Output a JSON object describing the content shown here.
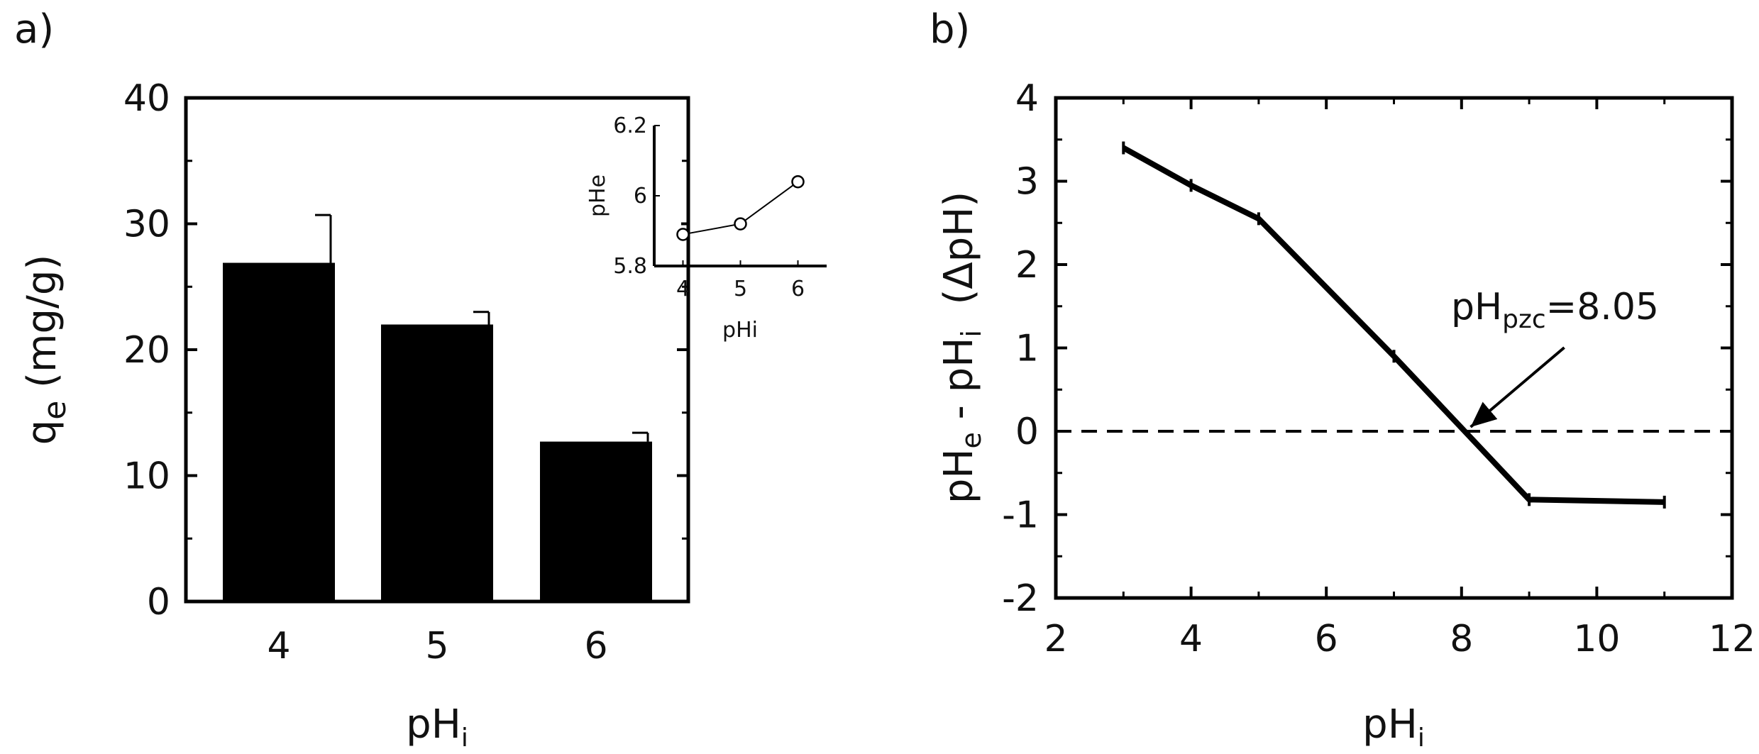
{
  "panels": {
    "a": {
      "label": "a)"
    },
    "b": {
      "label": "b)"
    }
  },
  "chart_data": [
    {
      "id": "a",
      "type": "bar",
      "categories": [
        "4",
        "5",
        "6"
      ],
      "values": [
        26.9,
        22.0,
        12.7
      ],
      "errors": [
        3.8,
        1.0,
        0.7
      ],
      "xlabel": {
        "main": "pH",
        "sub": "i"
      },
      "ylabel": {
        "main": "q",
        "sub": "e",
        "unit": " (mg/g)"
      },
      "ylim": [
        0,
        40
      ],
      "yticks": [
        0,
        10,
        20,
        30,
        40
      ],
      "bar_color": "#000000",
      "inset": {
        "type": "line",
        "x": [
          4,
          5,
          6
        ],
        "y": [
          5.89,
          5.92,
          6.04
        ],
        "xlabel": "pHi",
        "ylabel": "pHe",
        "xlim": [
          3.5,
          6.5
        ],
        "ylim": [
          5.8,
          6.2
        ],
        "xticks": [
          "4",
          "5",
          "6"
        ],
        "yticks": [
          "5.8",
          "6",
          "6.2"
        ],
        "marker": "open-circle"
      }
    },
    {
      "id": "b",
      "type": "line",
      "x": [
        3,
        4,
        5,
        7,
        9,
        11
      ],
      "y": [
        3.4,
        2.95,
        2.55,
        0.9,
        -0.82,
        -0.85
      ],
      "xlabel": {
        "main": "pH",
        "sub": "i"
      },
      "ylabel": {
        "p1": "pH",
        "s1": "e",
        "p2": " - pH",
        "s2": "i",
        "p3": "  (ΔpH)"
      },
      "xlim": [
        2,
        12
      ],
      "ylim": [
        -2,
        4
      ],
      "xticks": [
        "2",
        "4",
        "6",
        "8",
        "10",
        "12"
      ],
      "yticks": [
        "-2",
        "-1",
        "0",
        "1",
        "2",
        "3",
        "4"
      ],
      "reference_line": {
        "y": 0,
        "style": "dashed"
      },
      "annotation": {
        "main": "pH",
        "sub": "pzc",
        "value": "=8.05",
        "x": 8.05,
        "y": 0
      }
    }
  ]
}
